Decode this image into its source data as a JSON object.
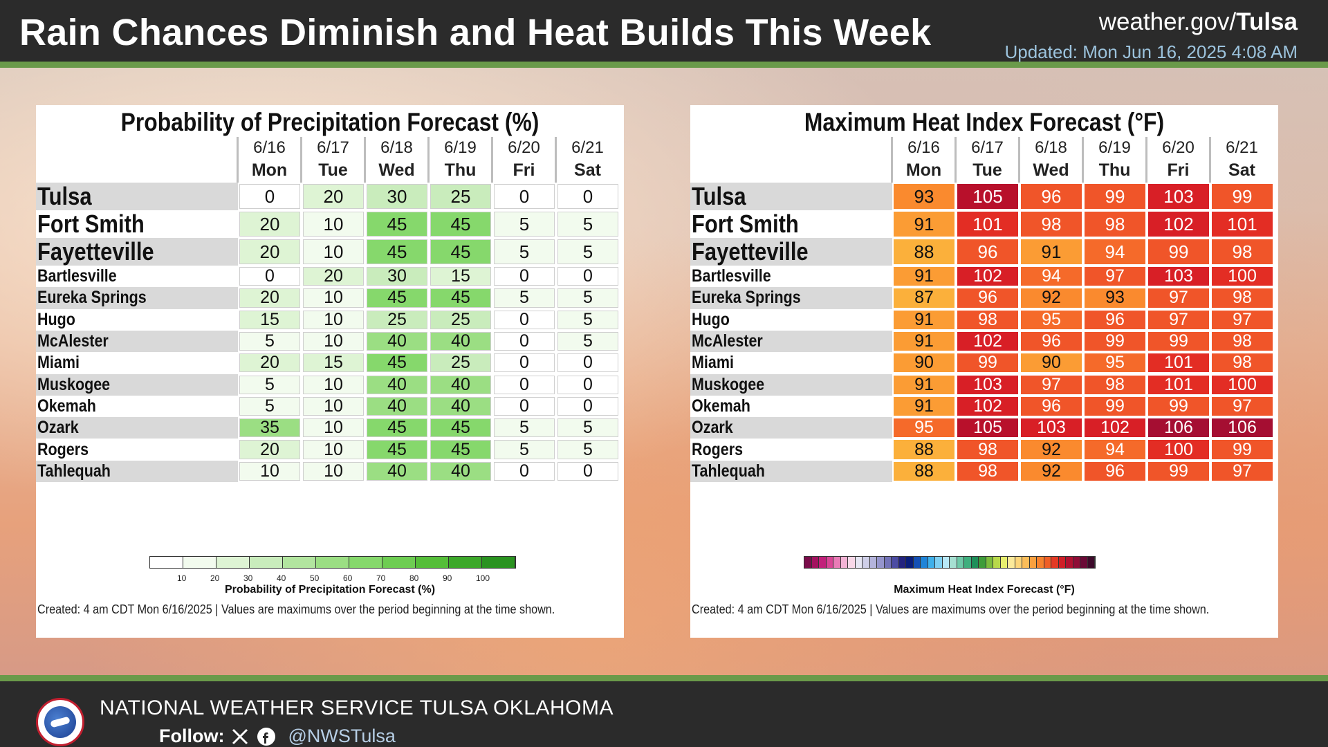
{
  "header": {
    "title": "Rain Chances Diminish and Heat Builds This Week",
    "site_prefix": "weather.gov/",
    "site_bold": "Tulsa",
    "updated": "Updated: Mon Jun 16, 2025 4:08 AM"
  },
  "footer": {
    "org": "NATIONAL WEATHER SERVICE TULSA OKLAHOMA",
    "follow_label": "Follow:",
    "handle": "@NWSTulsa",
    "icons": [
      "nws-logo-icon",
      "x-logo-icon",
      "facebook-icon"
    ]
  },
  "days": [
    {
      "date": "6/16",
      "dow": "Mon"
    },
    {
      "date": "6/17",
      "dow": "Tue"
    },
    {
      "date": "6/18",
      "dow": "Wed"
    },
    {
      "date": "6/19",
      "dow": "Thu"
    },
    {
      "date": "6/20",
      "dow": "Fri"
    },
    {
      "date": "6/21",
      "dow": "Sat"
    }
  ],
  "pop": {
    "title": "Probability of Precipitation Forecast (%)",
    "legend_title": "Probability of Precipitation Forecast (%)",
    "legend_ticks": [
      "10",
      "20",
      "30",
      "40",
      "50",
      "60",
      "70",
      "80",
      "90",
      "100"
    ],
    "created": "Created: 4 am CDT Mon 6/16/2025  |  Values are maximums over the period beginning at the time shown.",
    "rows": [
      {
        "name": "Tulsa",
        "values": [
          0,
          20,
          30,
          25,
          0,
          0
        ]
      },
      {
        "name": "Fort Smith",
        "values": [
          20,
          10,
          45,
          45,
          5,
          5
        ]
      },
      {
        "name": "Fayetteville",
        "values": [
          20,
          10,
          45,
          45,
          5,
          5
        ]
      },
      {
        "name": "Bartlesville",
        "values": [
          0,
          20,
          30,
          15,
          0,
          0
        ]
      },
      {
        "name": "Eureka Springs",
        "values": [
          20,
          10,
          45,
          45,
          5,
          5
        ]
      },
      {
        "name": "Hugo",
        "values": [
          15,
          10,
          25,
          25,
          0,
          5
        ]
      },
      {
        "name": "McAlester",
        "values": [
          5,
          10,
          40,
          40,
          0,
          5
        ]
      },
      {
        "name": "Miami",
        "values": [
          20,
          15,
          45,
          25,
          0,
          0
        ]
      },
      {
        "name": "Muskogee",
        "values": [
          5,
          10,
          40,
          40,
          0,
          0
        ]
      },
      {
        "name": "Okemah",
        "values": [
          5,
          10,
          40,
          40,
          0,
          0
        ]
      },
      {
        "name": "Ozark",
        "values": [
          35,
          10,
          45,
          45,
          5,
          5
        ]
      },
      {
        "name": "Rogers",
        "values": [
          20,
          10,
          45,
          45,
          5,
          5
        ]
      },
      {
        "name": "Tahlequah",
        "values": [
          10,
          10,
          40,
          40,
          0,
          0
        ]
      }
    ]
  },
  "heat": {
    "title": "Maximum Heat Index Forecast (°F)",
    "legend_title": "Maximum Heat Index Forecast (°F)",
    "created": "Created: 4 am CDT Mon 6/16/2025  |  Values are maximums over the period beginning at the time shown.",
    "rows": [
      {
        "name": "Tulsa",
        "values": [
          93,
          105,
          96,
          99,
          103,
          99
        ]
      },
      {
        "name": "Fort Smith",
        "values": [
          91,
          101,
          98,
          98,
          102,
          101
        ]
      },
      {
        "name": "Fayetteville",
        "values": [
          88,
          96,
          91,
          94,
          99,
          98
        ]
      },
      {
        "name": "Bartlesville",
        "values": [
          91,
          102,
          94,
          97,
          103,
          100
        ]
      },
      {
        "name": "Eureka Springs",
        "values": [
          87,
          96,
          92,
          93,
          97,
          98
        ]
      },
      {
        "name": "Hugo",
        "values": [
          91,
          98,
          95,
          96,
          97,
          97
        ]
      },
      {
        "name": "McAlester",
        "values": [
          91,
          102,
          96,
          99,
          99,
          98
        ]
      },
      {
        "name": "Miami",
        "values": [
          90,
          99,
          90,
          95,
          101,
          98
        ]
      },
      {
        "name": "Muskogee",
        "values": [
          91,
          103,
          97,
          98,
          101,
          100
        ]
      },
      {
        "name": "Okemah",
        "values": [
          91,
          102,
          96,
          99,
          99,
          97
        ]
      },
      {
        "name": "Ozark",
        "values": [
          95,
          105,
          103,
          102,
          106,
          106
        ]
      },
      {
        "name": "Rogers",
        "values": [
          88,
          98,
          92,
          94,
          100,
          99
        ]
      },
      {
        "name": "Tahlequah",
        "values": [
          88,
          98,
          92,
          96,
          99,
          97
        ]
      }
    ]
  },
  "colors": {
    "header_bg": "#2b2b2b",
    "accent_green": "#6a9a4a",
    "updated_text": "#9cc3dd",
    "handle_text": "#b7cfe6"
  }
}
